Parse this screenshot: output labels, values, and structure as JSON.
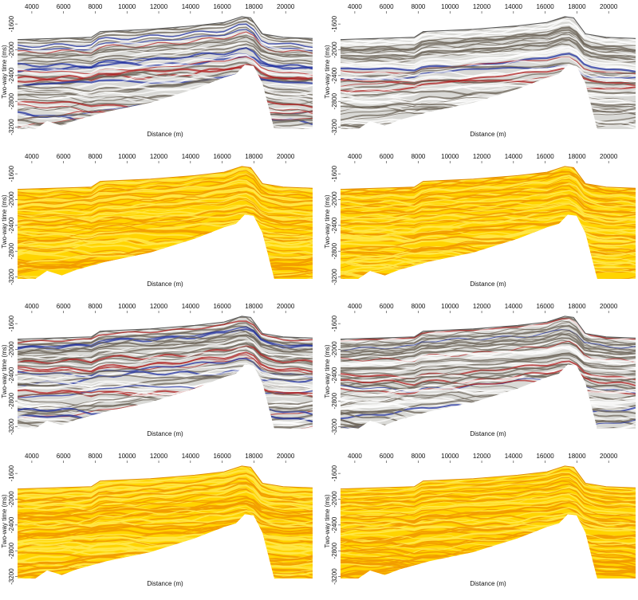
{
  "chart_data": [
    {
      "type": "seismic",
      "colormap": "gray",
      "x_label": "Distance (m)",
      "y_label": "Two-way time (ms)",
      "xlim": [
        3100,
        21700
      ],
      "ylim": [
        -3230,
        -1450
      ],
      "xticks": [
        4000,
        6000,
        8000,
        10000,
        12000,
        14000,
        16000,
        18000,
        20000
      ],
      "yticks": [
        -1600,
        -2000,
        -2400,
        -2800,
        -3200
      ]
    },
    {
      "type": "seismic",
      "colormap": "gray",
      "x_label": "Distance (m)",
      "y_label": "Two-way time (ms)",
      "xlim": [
        3100,
        21700
      ],
      "ylim": [
        -3230,
        -1450
      ],
      "xticks": [
        4000,
        6000,
        8000,
        10000,
        12000,
        14000,
        16000,
        18000,
        20000
      ],
      "yticks": [
        -1600,
        -2000,
        -2400,
        -2800,
        -3200
      ]
    },
    {
      "type": "seismic",
      "colormap": "yellow",
      "x_label": "Distance (m)",
      "y_label": "Two-way time (ms)",
      "xlim": [
        3100,
        21700
      ],
      "ylim": [
        -3230,
        -1450
      ],
      "xticks": [
        4000,
        6000,
        8000,
        10000,
        12000,
        14000,
        16000,
        18000,
        20000
      ],
      "yticks": [
        -1600,
        -2000,
        -2400,
        -2800,
        -3200
      ]
    },
    {
      "type": "seismic",
      "colormap": "yellow",
      "x_label": "Distance (m)",
      "y_label": "Two-way time (ms)",
      "xlim": [
        3100,
        21700
      ],
      "ylim": [
        -3230,
        -1450
      ],
      "xticks": [
        4000,
        6000,
        8000,
        10000,
        12000,
        14000,
        16000,
        18000,
        20000
      ],
      "yticks": [
        -1600,
        -2000,
        -2400,
        -2800,
        -3200
      ]
    },
    {
      "type": "seismic",
      "colormap": "gray",
      "x_label": "Distance (m)",
      "y_label": "Two-way time (ms)",
      "xlim": [
        3100,
        21700
      ],
      "ylim": [
        -3230,
        -1450
      ],
      "xticks": [
        4000,
        6000,
        8000,
        10000,
        12000,
        14000,
        16000,
        18000,
        20000
      ],
      "yticks": [
        -1600,
        -2000,
        -2400,
        -2800,
        -3200
      ]
    },
    {
      "type": "seismic",
      "colormap": "gray",
      "x_label": "Distance (m)",
      "y_label": "Two-way time (ms)",
      "xlim": [
        3100,
        21700
      ],
      "ylim": [
        -3230,
        -1450
      ],
      "xticks": [
        4000,
        6000,
        8000,
        10000,
        12000,
        14000,
        16000,
        18000,
        20000
      ],
      "yticks": [
        -1600,
        -2000,
        -2400,
        -2800,
        -3200
      ]
    },
    {
      "type": "seismic",
      "colormap": "yellow",
      "x_label": "Distance (m)",
      "y_label": "Two-way time (ms)",
      "xlim": [
        3100,
        21700
      ],
      "ylim": [
        -3230,
        -1450
      ],
      "xticks": [
        4000,
        6000,
        8000,
        10000,
        12000,
        14000,
        16000,
        18000,
        20000
      ],
      "yticks": [
        -1600,
        -2000,
        -2400,
        -2800,
        -3200
      ]
    },
    {
      "type": "seismic",
      "colormap": "yellow",
      "x_label": "Distance (m)",
      "y_label": "Two-way time (ms)",
      "xlim": [
        3100,
        21700
      ],
      "ylim": [
        -3230,
        -1450
      ],
      "xticks": [
        4000,
        6000,
        8000,
        10000,
        12000,
        14000,
        16000,
        18000,
        20000
      ],
      "yticks": [
        -1600,
        -2000,
        -2400,
        -2800,
        -3200
      ]
    }
  ]
}
